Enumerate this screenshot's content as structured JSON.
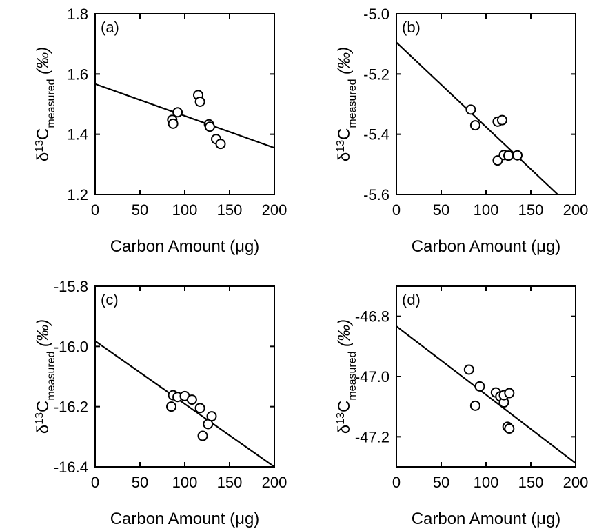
{
  "chart_data": [
    {
      "type": "scatter",
      "panel_label": "(a)",
      "xlabel": "Carbon Amount (μg)",
      "ylabel": {
        "delta": "δ",
        "sup": "13",
        "element": "C",
        "sub": "measured",
        "unit": "(‰)"
      },
      "xlim": [
        0,
        200
      ],
      "ylim": [
        1.2,
        1.8
      ],
      "xticks": [
        0,
        50,
        100,
        150,
        200
      ],
      "xtick_labels": [
        "0",
        "50",
        "100",
        "150",
        "200"
      ],
      "yticks": [
        1.2,
        1.4,
        1.6,
        1.8
      ],
      "ytick_labels": [
        "1.2",
        "1.4",
        "1.6",
        "1.8"
      ],
      "points": [
        {
          "x": 86,
          "y": 1.448
        },
        {
          "x": 87,
          "y": 1.435
        },
        {
          "x": 92,
          "y": 1.473
        },
        {
          "x": 115,
          "y": 1.53
        },
        {
          "x": 117,
          "y": 1.508
        },
        {
          "x": 127,
          "y": 1.433
        },
        {
          "x": 128,
          "y": 1.425
        },
        {
          "x": 135,
          "y": 1.384
        },
        {
          "x": 140,
          "y": 1.368
        }
      ],
      "fit_line": {
        "x": [
          0,
          200
        ],
        "y": [
          1.567,
          1.355
        ]
      },
      "grid": false
    },
    {
      "type": "scatter",
      "panel_label": "(b)",
      "xlabel": "Carbon Amount (μg)",
      "ylabel": {
        "delta": "δ",
        "sup": "13",
        "element": "C",
        "sub": "measured",
        "unit": "(‰)"
      },
      "xlim": [
        0,
        200
      ],
      "ylim": [
        -5.6,
        -5.0
      ],
      "xticks": [
        0,
        50,
        100,
        150,
        200
      ],
      "xtick_labels": [
        "0",
        "50",
        "100",
        "150",
        "200"
      ],
      "yticks": [
        -5.6,
        -5.4,
        -5.2,
        -5.0
      ],
      "ytick_labels": [
        "-5.6",
        "-5.4",
        "-5.2",
        "-5.0"
      ],
      "points": [
        {
          "x": 83,
          "y": -5.318
        },
        {
          "x": 88,
          "y": -5.37
        },
        {
          "x": 113,
          "y": -5.358
        },
        {
          "x": 118,
          "y": -5.353
        },
        {
          "x": 113,
          "y": -5.487
        },
        {
          "x": 120,
          "y": -5.469
        },
        {
          "x": 125,
          "y": -5.471
        },
        {
          "x": 135,
          "y": -5.47
        }
      ],
      "fit_line": {
        "x": [
          0,
          180
        ],
        "y": [
          -5.095,
          -5.6
        ]
      },
      "grid": false
    },
    {
      "type": "scatter",
      "panel_label": "(c)",
      "xlabel": "Carbon Amount (μg)",
      "ylabel": {
        "delta": "δ",
        "sup": "13",
        "element": "C",
        "sub": "measured",
        "unit": "(‰)"
      },
      "xlim": [
        0,
        200
      ],
      "ylim": [
        -16.4,
        -15.8
      ],
      "xticks": [
        0,
        50,
        100,
        150,
        200
      ],
      "xtick_labels": [
        "0",
        "50",
        "100",
        "150",
        "200"
      ],
      "yticks": [
        -16.4,
        -16.2,
        -16.0,
        -15.8
      ],
      "ytick_labels": [
        "-16.4",
        "-16.2",
        "-16.0",
        "-15.8"
      ],
      "points": [
        {
          "x": 85,
          "y": -16.2
        },
        {
          "x": 87,
          "y": -16.162
        },
        {
          "x": 92,
          "y": -16.168
        },
        {
          "x": 100,
          "y": -16.165
        },
        {
          "x": 108,
          "y": -16.177
        },
        {
          "x": 117,
          "y": -16.205
        },
        {
          "x": 120,
          "y": -16.297
        },
        {
          "x": 126,
          "y": -16.258
        },
        {
          "x": 130,
          "y": -16.232
        }
      ],
      "fit_line": {
        "x": [
          0,
          200
        ],
        "y": [
          -15.982,
          -16.4
        ]
      },
      "grid": false
    },
    {
      "type": "scatter",
      "panel_label": "(d)",
      "xlabel": "Carbon Amount (μg)",
      "ylabel": {
        "delta": "δ",
        "sup": "13",
        "element": "C",
        "sub": "measured",
        "unit": "(‰)"
      },
      "xlim": [
        0,
        200
      ],
      "ylim": [
        -47.3,
        -46.7
      ],
      "xticks": [
        0,
        50,
        100,
        150,
        200
      ],
      "xtick_labels": [
        "0",
        "50",
        "100",
        "150",
        "200"
      ],
      "yticks": [
        -47.2,
        -47.0,
        -46.8
      ],
      "ytick_labels": [
        "-47.2",
        "-47.0",
        "-46.8"
      ],
      "points": [
        {
          "x": 81,
          "y": -46.977
        },
        {
          "x": 88,
          "y": -47.097
        },
        {
          "x": 93,
          "y": -47.033
        },
        {
          "x": 111,
          "y": -47.053
        },
        {
          "x": 116,
          "y": -47.066
        },
        {
          "x": 120,
          "y": -47.086
        },
        {
          "x": 120,
          "y": -47.062
        },
        {
          "x": 126,
          "y": -47.055
        },
        {
          "x": 124,
          "y": -47.167
        },
        {
          "x": 126,
          "y": -47.173
        }
      ],
      "fit_line": {
        "x": [
          0,
          200
        ],
        "y": [
          -46.833,
          -47.288
        ]
      },
      "grid": false
    }
  ]
}
